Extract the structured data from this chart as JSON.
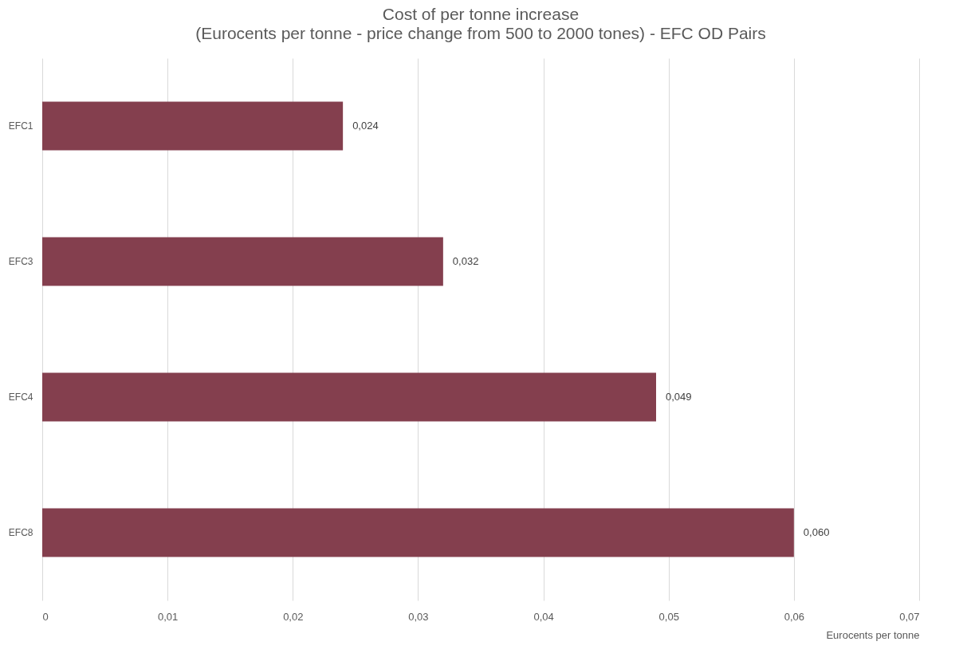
{
  "chart_data": {
    "type": "bar",
    "orientation": "horizontal",
    "title": "Cost of per tonne increase",
    "subtitle": "(Eurocents per tonne - price change from 500 to 2000 tones) - EFC OD Pairs",
    "xlabel": "Eurocents per tonne",
    "categories": [
      "EFC1",
      "EFC3",
      "EFC4",
      "EFC8"
    ],
    "values": [
      0.024,
      0.032,
      0.049,
      0.06
    ],
    "value_labels": [
      "0,024",
      "0,032",
      "0,049",
      "0,060"
    ],
    "color": "#843f4e",
    "xlim": [
      0,
      0.07
    ],
    "xticks": [
      0,
      {
        "value": 0.01,
        "label": "0,01"
      },
      {
        "value": 0.02,
        "label": "0,02"
      },
      {
        "value": 0.03,
        "label": "0,03"
      },
      {
        "value": 0.04,
        "label": "0,04"
      },
      {
        "value": 0.05,
        "label": "0,05"
      },
      {
        "value": 0.06,
        "label": "0,06"
      },
      {
        "value": 0.07,
        "label": "0,07"
      }
    ],
    "grid": "x"
  }
}
